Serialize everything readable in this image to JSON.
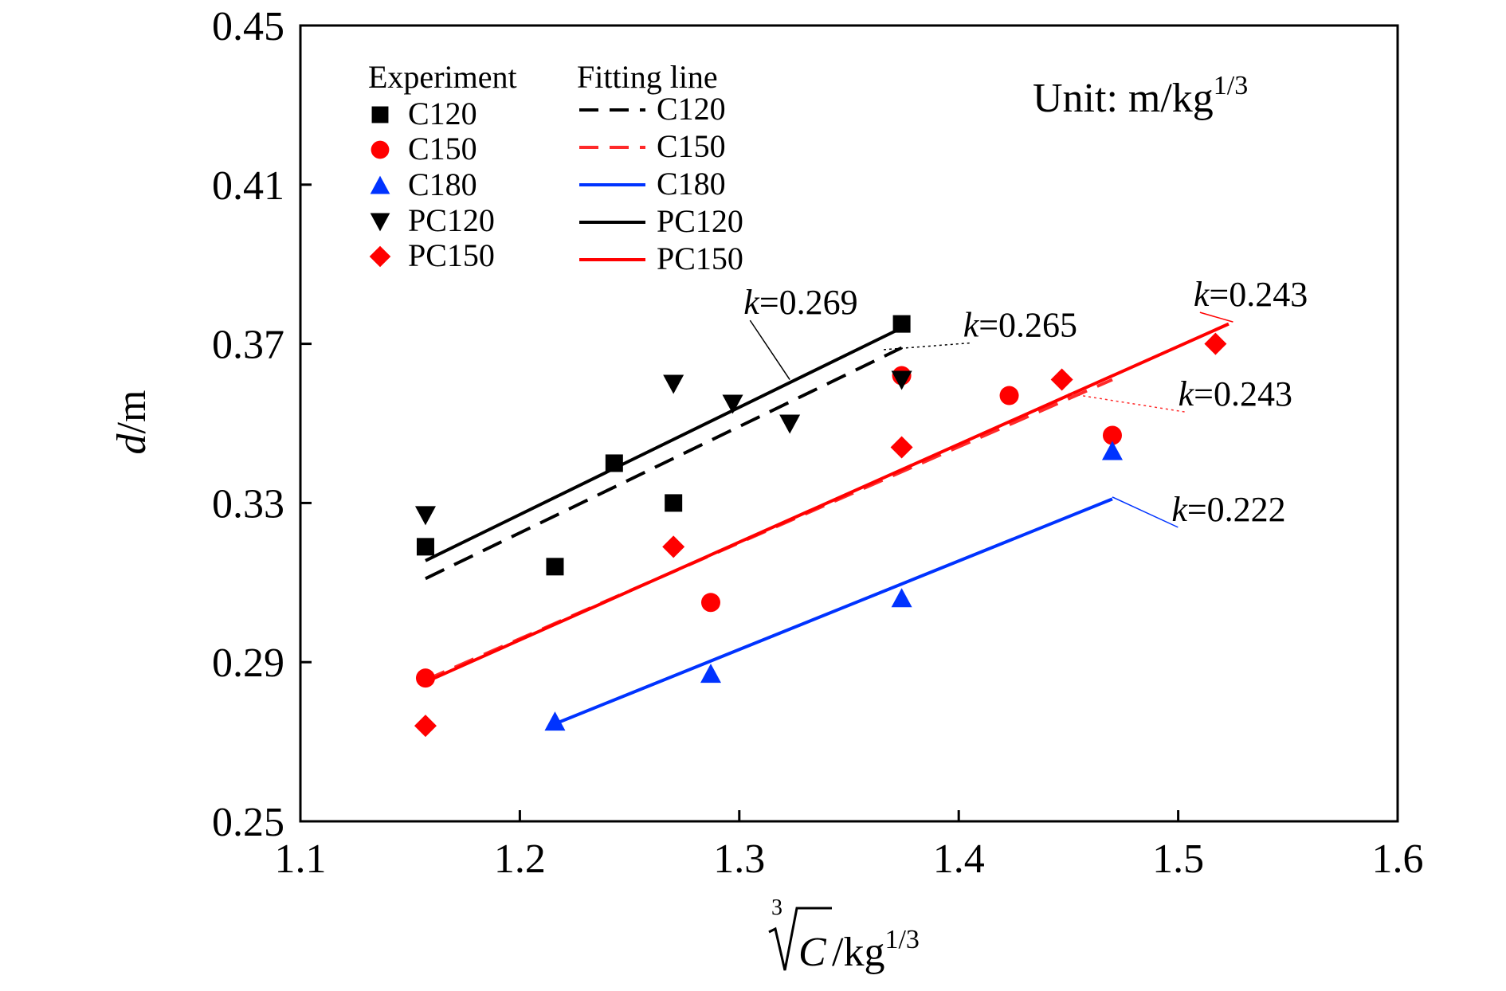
{
  "chart_data": {
    "type": "scatter",
    "title": "",
    "xlabel": "/kg",
    "xlabel_root_index": "3",
    "xlabel_radicand": "C",
    "xlabel_exponent": "1/3",
    "ylabel_italic": "d",
    "ylabel": "/m",
    "xlim": [
      1.1,
      1.6
    ],
    "ylim": [
      0.25,
      0.45
    ],
    "x_ticks": [
      1.1,
      1.2,
      1.3,
      1.4,
      1.5,
      1.6
    ],
    "x_tick_labels": [
      "1.1",
      "1.2",
      "1.3",
      "1.4",
      "1.5",
      "1.6"
    ],
    "y_ticks": [
      0.25,
      0.29,
      0.33,
      0.37,
      0.41,
      0.45
    ],
    "y_tick_labels": [
      "0.25",
      "0.29",
      "0.33",
      "0.37",
      "0.41",
      "0.45"
    ],
    "grid": false,
    "unit_note": {
      "text": "Unit: m/kg",
      "exponent": "1/3"
    },
    "legend": {
      "position": "top-left",
      "experiment_header": "Experiment",
      "fitting_header": "Fitting line"
    },
    "series": [
      {
        "name": "C120",
        "color": "#000000",
        "marker": "square",
        "x": [
          1.157,
          1.216,
          1.243,
          1.27,
          1.374
        ],
        "y": [
          0.319,
          0.314,
          0.34,
          0.33,
          0.375
        ],
        "fit": {
          "x": [
            1.157,
            1.374
          ],
          "y": [
            0.311,
            0.369
          ],
          "dash": "dashed",
          "color": "#000000"
        }
      },
      {
        "name": "C150",
        "color": "#ff0000",
        "marker": "circle",
        "x": [
          1.157,
          1.287,
          1.374,
          1.423,
          1.47
        ],
        "y": [
          0.286,
          0.305,
          0.362,
          0.357,
          0.347
        ],
        "fit": {
          "x": [
            1.157,
            1.47
          ],
          "y": [
            0.2855,
            0.361
          ],
          "dash": "dashed",
          "color": "#ff2a2a"
        }
      },
      {
        "name": "C180",
        "color": "#0033ff",
        "marker": "triangle-up",
        "x": [
          1.216,
          1.287,
          1.374,
          1.47
        ],
        "y": [
          0.275,
          0.287,
          0.306,
          0.343
        ],
        "fit": {
          "x": [
            1.216,
            1.47
          ],
          "y": [
            0.2745,
            0.331
          ],
          "dash": "solid",
          "color": "#0033ff"
        }
      },
      {
        "name": "PC120",
        "color": "#000000",
        "marker": "triangle-down",
        "x": [
          1.157,
          1.27,
          1.297,
          1.323,
          1.374
        ],
        "y": [
          0.327,
          0.36,
          0.355,
          0.35,
          0.361
        ],
        "fit": {
          "x": [
            1.157,
            1.374
          ],
          "y": [
            0.3155,
            0.374
          ],
          "dash": "solid",
          "color": "#000000"
        }
      },
      {
        "name": "PC150",
        "color": "#ff0000",
        "marker": "diamond",
        "x": [
          1.157,
          1.27,
          1.374,
          1.447,
          1.517
        ],
        "y": [
          0.274,
          0.319,
          0.344,
          0.361,
          0.37
        ],
        "fit": {
          "x": [
            1.157,
            1.523
          ],
          "y": [
            0.285,
            0.375
          ],
          "dash": "solid",
          "color": "#ff0000"
        }
      }
    ],
    "annotations": [
      {
        "italic": "k",
        "text": "=0.269",
        "color": "#000000",
        "leader": "solid",
        "label_x": 1.302,
        "label_y": 0.3775,
        "to_x": 1.323,
        "to_y": 0.361
      },
      {
        "italic": "k",
        "text": "=0.265",
        "color": "#000000",
        "leader": "dotted",
        "label_x": 1.402,
        "label_y": 0.3718,
        "to_x": 1.365,
        "to_y": 0.3685
      },
      {
        "italic": "k",
        "text": "=0.243",
        "color": "#ff0000",
        "leader": "solid",
        "label_x": 1.507,
        "label_y": 0.3795,
        "to_x": 1.525,
        "to_y": 0.3755
      },
      {
        "italic": "k",
        "text": "=0.243",
        "color": "#ff2a2a",
        "leader": "dotted",
        "label_x": 1.5,
        "label_y": 0.3545,
        "to_x": 1.45,
        "to_y": 0.3575
      },
      {
        "italic": "k",
        "text": "=0.222",
        "color": "#0033ff",
        "leader": "solid",
        "label_x": 1.497,
        "label_y": 0.3255,
        "to_x": 1.47,
        "to_y": 0.3315
      }
    ]
  }
}
